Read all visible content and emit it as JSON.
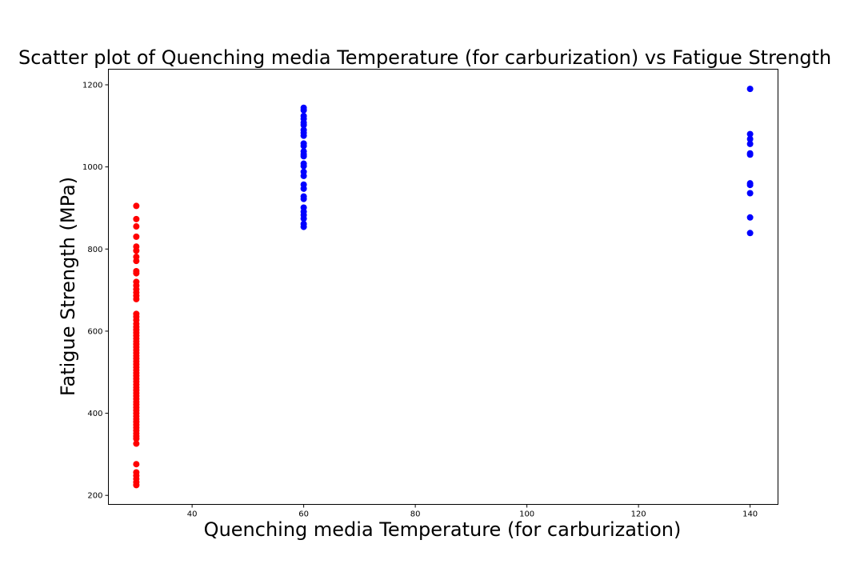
{
  "chart_data": {
    "type": "scatter",
    "title": "Scatter plot of Quenching media Temperature (for carburization) vs Fatigue Strength",
    "xlabel": "Quenching media Temperature (for carburization)",
    "ylabel": "Fatigue Strength (MPa)",
    "xlim": [
      25,
      145
    ],
    "ylim": [
      178,
      1238
    ],
    "xticks": [
      40,
      60,
      80,
      100,
      120,
      140
    ],
    "yticks": [
      200,
      400,
      600,
      800,
      1000,
      1200
    ],
    "grid": false,
    "colors": {
      "low": "#ff0000",
      "high": "#0000ff"
    },
    "series": [
      {
        "color": "#ff0000",
        "points": [
          [
            30,
            905
          ],
          [
            30,
            873
          ],
          [
            30,
            855
          ],
          [
            30,
            830
          ],
          [
            30,
            806
          ],
          [
            30,
            796
          ],
          [
            30,
            781
          ],
          [
            30,
            771
          ],
          [
            30,
            746
          ],
          [
            30,
            741
          ],
          [
            30,
            720
          ],
          [
            30,
            711
          ],
          [
            30,
            702
          ],
          [
            30,
            694
          ],
          [
            30,
            686
          ],
          [
            30,
            678
          ],
          [
            30,
            642
          ],
          [
            30,
            635
          ],
          [
            30,
            627
          ],
          [
            30,
            618
          ],
          [
            30,
            610
          ],
          [
            30,
            603
          ],
          [
            30,
            596
          ],
          [
            30,
            589
          ],
          [
            30,
            582
          ],
          [
            30,
            575
          ],
          [
            30,
            568
          ],
          [
            30,
            561
          ],
          [
            30,
            554
          ],
          [
            30,
            547
          ],
          [
            30,
            540
          ],
          [
            30,
            533
          ],
          [
            30,
            526
          ],
          [
            30,
            519
          ],
          [
            30,
            512
          ],
          [
            30,
            505
          ],
          [
            30,
            498
          ],
          [
            30,
            491
          ],
          [
            30,
            484
          ],
          [
            30,
            477
          ],
          [
            30,
            470
          ],
          [
            30,
            463
          ],
          [
            30,
            456
          ],
          [
            30,
            449
          ],
          [
            30,
            442
          ],
          [
            30,
            435
          ],
          [
            30,
            428
          ],
          [
            30,
            421
          ],
          [
            30,
            414
          ],
          [
            30,
            407
          ],
          [
            30,
            400
          ],
          [
            30,
            393
          ],
          [
            30,
            386
          ],
          [
            30,
            379
          ],
          [
            30,
            372
          ],
          [
            30,
            365
          ],
          [
            30,
            358
          ],
          [
            30,
            351
          ],
          [
            30,
            344
          ],
          [
            30,
            338
          ],
          [
            30,
            326
          ],
          [
            30,
            276
          ],
          [
            30,
            256
          ],
          [
            30,
            248
          ],
          [
            30,
            240
          ],
          [
            30,
            232
          ],
          [
            30,
            225
          ]
        ]
      },
      {
        "color": "#0000ff",
        "points": [
          [
            60,
            1144
          ],
          [
            60,
            1138
          ],
          [
            60,
            1124
          ],
          [
            60,
            1117
          ],
          [
            60,
            1108
          ],
          [
            60,
            1102
          ],
          [
            60,
            1090
          ],
          [
            60,
            1083
          ],
          [
            60,
            1076
          ],
          [
            60,
            1057
          ],
          [
            60,
            1051
          ],
          [
            60,
            1038
          ],
          [
            60,
            1031
          ],
          [
            60,
            1026
          ],
          [
            60,
            1008
          ],
          [
            60,
            1002
          ],
          [
            60,
            988
          ],
          [
            60,
            978
          ],
          [
            60,
            957
          ],
          [
            60,
            947
          ],
          [
            60,
            928
          ],
          [
            60,
            922
          ],
          [
            60,
            901
          ],
          [
            60,
            891
          ],
          [
            60,
            883
          ],
          [
            60,
            874
          ],
          [
            60,
            861
          ],
          [
            60,
            854
          ],
          [
            140,
            1190
          ],
          [
            140,
            1080
          ],
          [
            140,
            1068
          ],
          [
            140,
            1056
          ],
          [
            140,
            1033
          ],
          [
            140,
            1030
          ],
          [
            140,
            960
          ],
          [
            140,
            956
          ],
          [
            140,
            936
          ],
          [
            140,
            877
          ],
          [
            140,
            839
          ]
        ]
      }
    ]
  }
}
